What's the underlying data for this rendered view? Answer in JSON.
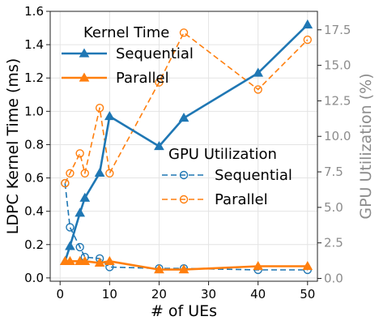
{
  "chart_data": {
    "type": "line",
    "xlabel": "# of UEs",
    "ylabel": "LDPC Kernel Time (ms)",
    "y2label": "GPU Utilization (%)",
    "xlim": [
      -2,
      52
    ],
    "ylim": [
      -0.02,
      1.6
    ],
    "y2lim": [
      -0.2,
      18.8
    ],
    "x_ticks": [
      0,
      10,
      20,
      30,
      40,
      50
    ],
    "y_ticks": [
      0.0,
      0.2,
      0.4,
      0.6,
      0.8,
      1.0,
      1.2,
      1.4,
      1.6
    ],
    "y2_ticks": [
      0.0,
      2.5,
      5.0,
      7.5,
      10.0,
      12.5,
      15.0,
      17.5
    ],
    "grid": true,
    "legends": [
      {
        "title": "Kernel Time",
        "placement": "top-left",
        "entries": [
          "Sequential",
          "Parallel"
        ]
      },
      {
        "title": "GPU Utilization",
        "placement": "center-right",
        "entries": [
          "Sequential",
          "Parallel"
        ]
      }
    ],
    "series": [
      {
        "name": "Sequential",
        "metric": "Kernel Time",
        "axis": "left",
        "style": "solid",
        "marker": "triangle-filled",
        "color": "#1f77b4",
        "x": [
          1,
          2,
          4,
          5,
          8,
          10,
          20,
          25,
          40,
          50
        ],
        "y": [
          0.1,
          0.19,
          0.39,
          0.48,
          0.63,
          0.97,
          0.79,
          0.96,
          1.23,
          1.52
        ]
      },
      {
        "name": "Parallel",
        "metric": "Kernel Time",
        "axis": "left",
        "style": "solid",
        "marker": "triangle-filled",
        "color": "#ff7f0e",
        "x": [
          1,
          2,
          4,
          5,
          8,
          10,
          20,
          25,
          40,
          50
        ],
        "y": [
          0.1,
          0.1,
          0.1,
          0.1,
          0.09,
          0.1,
          0.05,
          0.05,
          0.07,
          0.07
        ]
      },
      {
        "name": "Sequential",
        "metric": "GPU Utilization",
        "axis": "right",
        "style": "dashed",
        "marker": "circle-open",
        "color": "#1f77b4",
        "x": [
          1,
          2,
          4,
          5,
          8,
          10,
          20,
          25,
          40,
          50
        ],
        "y": [
          6.7,
          3.6,
          2.2,
          1.5,
          1.4,
          0.8,
          0.7,
          0.7,
          0.6,
          0.6
        ]
      },
      {
        "name": "Parallel",
        "metric": "GPU Utilization",
        "axis": "right",
        "style": "dashed",
        "marker": "circle-open",
        "color": "#ff7f0e",
        "x": [
          1,
          2,
          4,
          5,
          8,
          10,
          20,
          25,
          40,
          50
        ],
        "y": [
          6.7,
          7.4,
          8.8,
          7.4,
          12.0,
          7.4,
          13.8,
          17.3,
          13.3,
          16.8
        ]
      }
    ]
  }
}
